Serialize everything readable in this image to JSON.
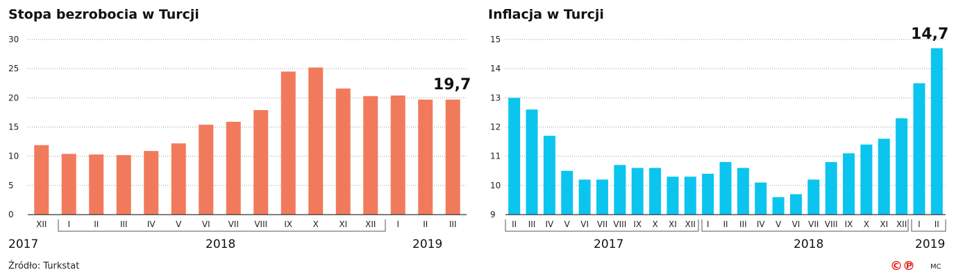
{
  "chart_data": [
    {
      "type": "bar",
      "title": "Stopa bezrobocia w Turcji",
      "categories": [
        "XII",
        "I",
        "II",
        "III",
        "IV",
        "V",
        "VI",
        "VII",
        "VIII",
        "IX",
        "X",
        "XI",
        "XII",
        "I",
        "II",
        "III"
      ],
      "values": [
        11.9,
        10.4,
        10.3,
        10.2,
        10.9,
        12.2,
        15.4,
        15.9,
        17.9,
        24.5,
        25.2,
        21.6,
        20.3,
        20.4,
        19.7,
        19.7
      ],
      "ylim": [
        0,
        30
      ],
      "yticks": [
        "0",
        "5",
        "10",
        "15",
        "20",
        "25",
        "30"
      ],
      "color": "#f27a5c",
      "years": [
        "2017",
        "2018",
        "2019"
      ],
      "callout": "19,7",
      "xlabel": "",
      "ylabel": ""
    },
    {
      "type": "bar",
      "title": "Inflacja w Turcji",
      "categories": [
        "II",
        "III",
        "IV",
        "V",
        "VI",
        "VII",
        "VIII",
        "IX",
        "X",
        "XI",
        "XII",
        "I",
        "II",
        "III",
        "IV",
        "V",
        "VI",
        "VII",
        "VIII",
        "IX",
        "X",
        "XI",
        "XII",
        "I",
        "II"
      ],
      "values": [
        13.0,
        12.6,
        11.7,
        10.5,
        10.2,
        10.2,
        10.7,
        10.6,
        10.6,
        10.3,
        10.3,
        10.4,
        10.8,
        10.6,
        10.1,
        9.6,
        9.7,
        10.2,
        10.8,
        11.1,
        11.4,
        11.6,
        12.3,
        13.5,
        14.7
      ],
      "ylim": [
        9,
        15
      ],
      "yticks": [
        "9",
        "10",
        "11",
        "12",
        "13",
        "14",
        "15"
      ],
      "color": "#0bc5ee",
      "years": [
        "2017",
        "2018",
        "2019"
      ],
      "callout": "14,7",
      "xlabel": "",
      "ylabel": ""
    }
  ],
  "footer": {
    "source": "Źródło: Turkstat",
    "logo_text": "©℗",
    "author": "MC"
  }
}
